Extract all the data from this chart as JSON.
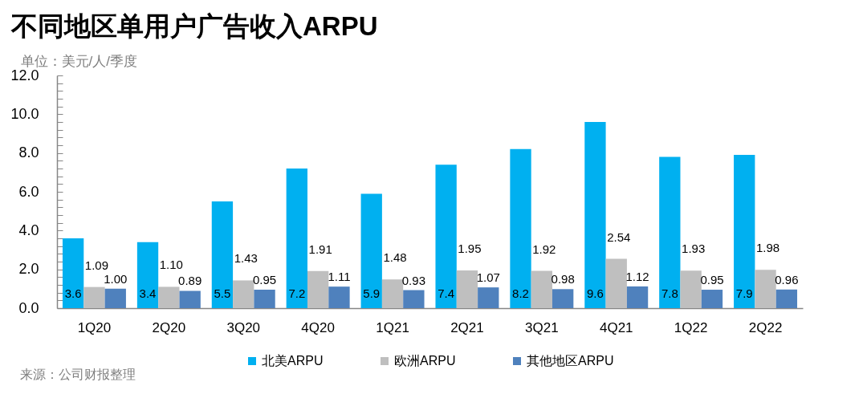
{
  "chart_data": {
    "type": "bar",
    "title": "不同地区单用户广告收入ARPU",
    "ylabel": "单位：美元/人/季度",
    "categories": [
      "1Q20",
      "2Q20",
      "3Q20",
      "4Q20",
      "1Q21",
      "2Q21",
      "3Q21",
      "4Q21",
      "1Q22",
      "2Q22"
    ],
    "series": [
      {
        "name": "北美ARPU",
        "color": "#00b0f0",
        "values": [
          3.6,
          3.4,
          5.5,
          7.2,
          5.9,
          7.4,
          8.2,
          9.6,
          7.8,
          7.9
        ],
        "value_labels": [
          "3.6",
          "3.4",
          "5.5",
          "7.2",
          "5.9",
          "7.4",
          "8.2",
          "9.6",
          "7.8",
          "7.9"
        ]
      },
      {
        "name": "欧洲ARPU",
        "color": "#bfbfbf",
        "values": [
          1.09,
          1.1,
          1.43,
          1.91,
          1.48,
          1.95,
          1.92,
          2.54,
          1.93,
          1.98
        ],
        "value_labels": [
          "1.09",
          "1.10",
          "1.43",
          "1.91",
          "1.48",
          "1.95",
          "1.92",
          "2.54",
          "1.93",
          "1.98"
        ]
      },
      {
        "name": "其他地区ARPU",
        "color": "#4f81bd",
        "values": [
          1,
          0.89,
          0.95,
          1.11,
          0.93,
          1.07,
          0.98,
          1.12,
          0.95,
          0.96
        ],
        "value_labels": [
          "1.00",
          "0.89",
          "0.95",
          "1.11",
          "0.93",
          "1.07",
          "0.98",
          "1.12",
          "0.95",
          "0.96"
        ]
      }
    ],
    "ylim": [
      0,
      12
    ],
    "yticks": [
      {
        "value": 0,
        "label": "0.0"
      },
      {
        "value": 0.4,
        "label": null
      },
      {
        "value": 0.8,
        "label": null
      },
      {
        "value": 1.2,
        "label": null
      },
      {
        "value": 1.6,
        "label": null
      },
      {
        "value": 2,
        "label": "2.0"
      },
      {
        "value": 2.4,
        "label": null
      },
      {
        "value": 2.8,
        "label": null
      },
      {
        "value": 3.2,
        "label": null
      },
      {
        "value": 3.6,
        "label": null
      },
      {
        "value": 4,
        "label": "4.0"
      },
      {
        "value": 4.4,
        "label": null
      },
      {
        "value": 4.8,
        "label": null
      },
      {
        "value": 5.2,
        "label": null
      },
      {
        "value": 5.6,
        "label": null
      },
      {
        "value": 6,
        "label": "6.0"
      },
      {
        "value": 6.4,
        "label": null
      },
      {
        "value": 6.8,
        "label": null
      },
      {
        "value": 7.2,
        "label": null
      },
      {
        "value": 7.6,
        "label": null
      },
      {
        "value": 8,
        "label": "8.0"
      },
      {
        "value": 8.4,
        "label": null
      },
      {
        "value": 8.8,
        "label": null
      },
      {
        "value": 9.2,
        "label": null
      },
      {
        "value": 9.6,
        "label": null
      },
      {
        "value": 10,
        "label": "10.0"
      },
      {
        "value": 10.4,
        "label": null
      },
      {
        "value": 10.8,
        "label": null
      },
      {
        "value": 11.2,
        "label": null
      },
      {
        "value": 11.6,
        "label": null
      },
      {
        "value": 12,
        "label": "12.0"
      }
    ],
    "legend": "bottom",
    "annotations": [
      "来源：公司财报整理"
    ]
  }
}
